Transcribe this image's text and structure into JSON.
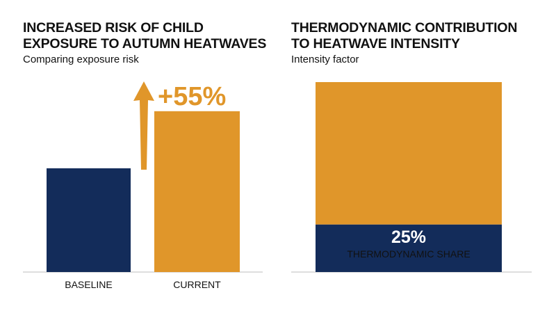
{
  "colors": {
    "navy": "#132c5a",
    "amber": "#e0962a",
    "axis": "#bdbdbd",
    "text": "#111111"
  },
  "chart_data": [
    {
      "type": "bar",
      "title": "INCREASED RISK OF CHILD EXPOSURE TO AUTUMN HEATWAVES",
      "title_lines": [
        "INCREASED RISK OF CHILD",
        "EXPOSURE TO AUTUMN HEATWAVES"
      ],
      "subtitle": "Comparing exposure risk",
      "categories": [
        "BASELINE",
        "CURRENT"
      ],
      "values": [
        100,
        155
      ],
      "ylim": [
        0,
        175
      ],
      "annotation": "+55%",
      "annotation_icon": "up-arrow-icon",
      "bar_colors": [
        "#132c5a",
        "#e0962a"
      ],
      "grid": false
    },
    {
      "type": "bar",
      "subtype": "stacked",
      "title": "THERMODYNAMIC CONTRIBUTION TO HEATWAVE INTENSITY",
      "title_lines": [
        "THERMODYNAMIC CONTRIBUTION",
        "TO HEATWAVE INTENSITY"
      ],
      "subtitle": "Intensity factor",
      "series": [
        {
          "values": [
            25
          ],
          "color": "#132c5a",
          "value_label": "25%",
          "label": "THERMODYNAMIC SHARE"
        },
        {
          "values": [
            75
          ],
          "color": "#e0962a"
        }
      ],
      "ylim": [
        0,
        100
      ],
      "grid": false
    }
  ]
}
